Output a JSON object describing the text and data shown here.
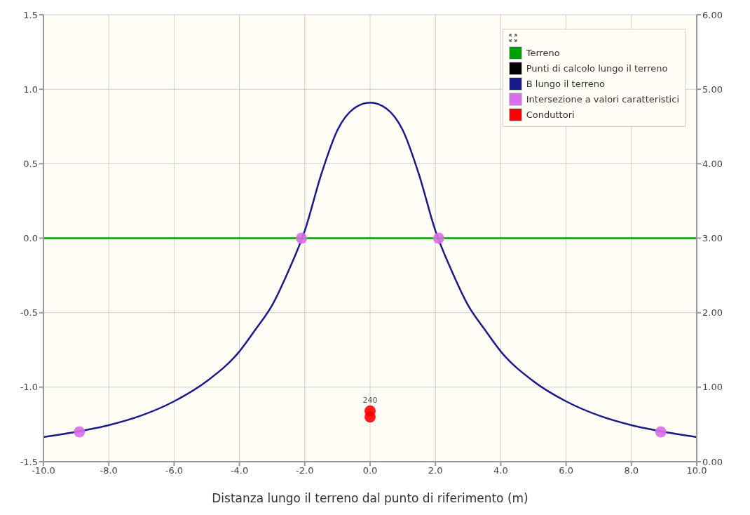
{
  "chart_data": {
    "type": "line",
    "xlabel": "Distanza lungo il terreno dal punto di riferimento (m)",
    "xlim": [
      -10,
      10
    ],
    "xticks": [
      {
        "value": -10,
        "label": "-10.0"
      },
      {
        "value": -8,
        "label": "-8.0"
      },
      {
        "value": -6,
        "label": "-6.0"
      },
      {
        "value": -4,
        "label": "-4.0"
      },
      {
        "value": -2,
        "label": "-2.0"
      },
      {
        "value": 0,
        "label": "0.0"
      },
      {
        "value": 2,
        "label": "2.0"
      },
      {
        "value": 4,
        "label": "4.0"
      },
      {
        "value": 6,
        "label": "6.0"
      },
      {
        "value": 8,
        "label": "8.0"
      },
      {
        "value": 10,
        "label": "10.0"
      }
    ],
    "ylim": [
      -1.5,
      1.5
    ],
    "yticks": [
      -1.5,
      {
        "value": -1,
        "label": "-1.0"
      },
      -0.5,
      {
        "value": 0,
        "label": "0.0"
      },
      0.5,
      {
        "value": 1,
        "label": "1.0"
      },
      1.5
    ],
    "y2lim": [
      0,
      6
    ],
    "y2ticks": [
      {
        "value": 0,
        "label": "0.00"
      },
      {
        "value": 1,
        "label": "1.00"
      },
      {
        "value": 2,
        "label": "2.00"
      },
      {
        "value": 3,
        "label": "3.00"
      },
      {
        "value": 4,
        "label": "4.00"
      },
      {
        "value": 5,
        "label": "5.00"
      },
      {
        "value": 6,
        "label": "6.00"
      }
    ],
    "grid": true,
    "legend": "top right",
    "line_style": "solid",
    "annotations": [
      {
        "text": "240",
        "x": 0,
        "y": -1.16
      }
    ],
    "series": [
      {
        "name": "Terreno",
        "color": "#00a000",
        "x": [
          -10,
          10
        ],
        "values": [
          0,
          0
        ]
      },
      {
        "name": "Punti di calcolo lungo il terreno",
        "type": "scatter",
        "color": "#000000"
      },
      {
        "name": "B lungo il terreno",
        "axis": "y2",
        "color": "#1a1a8c",
        "x": [
          -10,
          -9,
          -8,
          -7,
          -6,
          -5,
          -4,
          -3.5,
          -3,
          -2.5,
          -2,
          -1.5,
          -1,
          -0.5,
          0,
          0.5,
          1,
          1.5,
          2,
          2.5,
          3,
          3.5,
          4,
          5,
          6,
          7,
          8,
          9,
          10
        ],
        "values": [
          0.33,
          0.4,
          0.49,
          0.62,
          0.81,
          1.08,
          1.48,
          1.78,
          2.1,
          2.56,
          3.1,
          3.85,
          4.45,
          4.74,
          4.82,
          4.74,
          4.45,
          3.85,
          3.1,
          2.56,
          2.1,
          1.78,
          1.48,
          1.08,
          0.81,
          0.62,
          0.49,
          0.4,
          0.33
        ]
      },
      {
        "name": "Intersezione a valori caratteristici",
        "type": "scatter",
        "color": "#d86ee8",
        "x": [
          -8.9,
          -2.1,
          2.1,
          8.9
        ],
        "values": [
          -1.3,
          0,
          0,
          -1.3
        ]
      },
      {
        "name": "Conduttori",
        "type": "scatter",
        "color": "#ff0000",
        "x": [
          0,
          0
        ],
        "values": [
          -1.16,
          -1.2
        ]
      }
    ]
  }
}
